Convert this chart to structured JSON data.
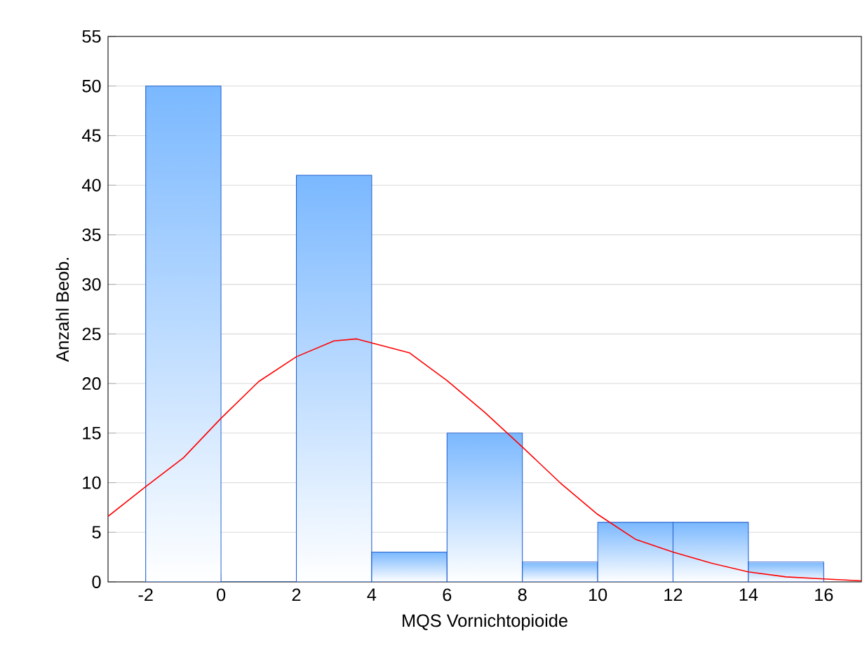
{
  "chart_data": {
    "type": "histogram",
    "xlabel": "MQS Vornichtopioide",
    "ylabel": "Anzahl Beob.",
    "bins": [
      -2,
      0,
      2,
      4,
      6,
      8,
      10,
      12,
      14,
      16
    ],
    "values": [
      50,
      0,
      41,
      3,
      15,
      2,
      6,
      6,
      2
    ],
    "color": "#7ab8ff",
    "series": [
      {
        "type": "line",
        "color": "#ff0000",
        "x": [
          -3,
          -2,
          -1,
          0,
          1,
          2,
          3,
          3.6,
          5,
          6,
          7,
          8,
          9,
          10,
          11,
          12,
          13,
          14,
          15,
          16,
          17
        ],
        "values": [
          6.6,
          9.6,
          12.5,
          16.5,
          20.2,
          22.7,
          24.3,
          24.5,
          23.1,
          20.3,
          17.1,
          13.6,
          10.0,
          6.8,
          4.3,
          3.0,
          1.9,
          1.0,
          0.5,
          0.3,
          0.1
        ]
      }
    ],
    "xlim": [
      -3,
      17
    ],
    "xticks": [
      -2,
      0,
      2,
      4,
      6,
      8,
      10,
      12,
      14,
      16
    ],
    "ylim": [
      0,
      55
    ],
    "yticks": [
      0,
      5,
      10,
      15,
      20,
      25,
      30,
      35,
      40,
      45,
      50,
      55
    ],
    "grid": "y"
  }
}
